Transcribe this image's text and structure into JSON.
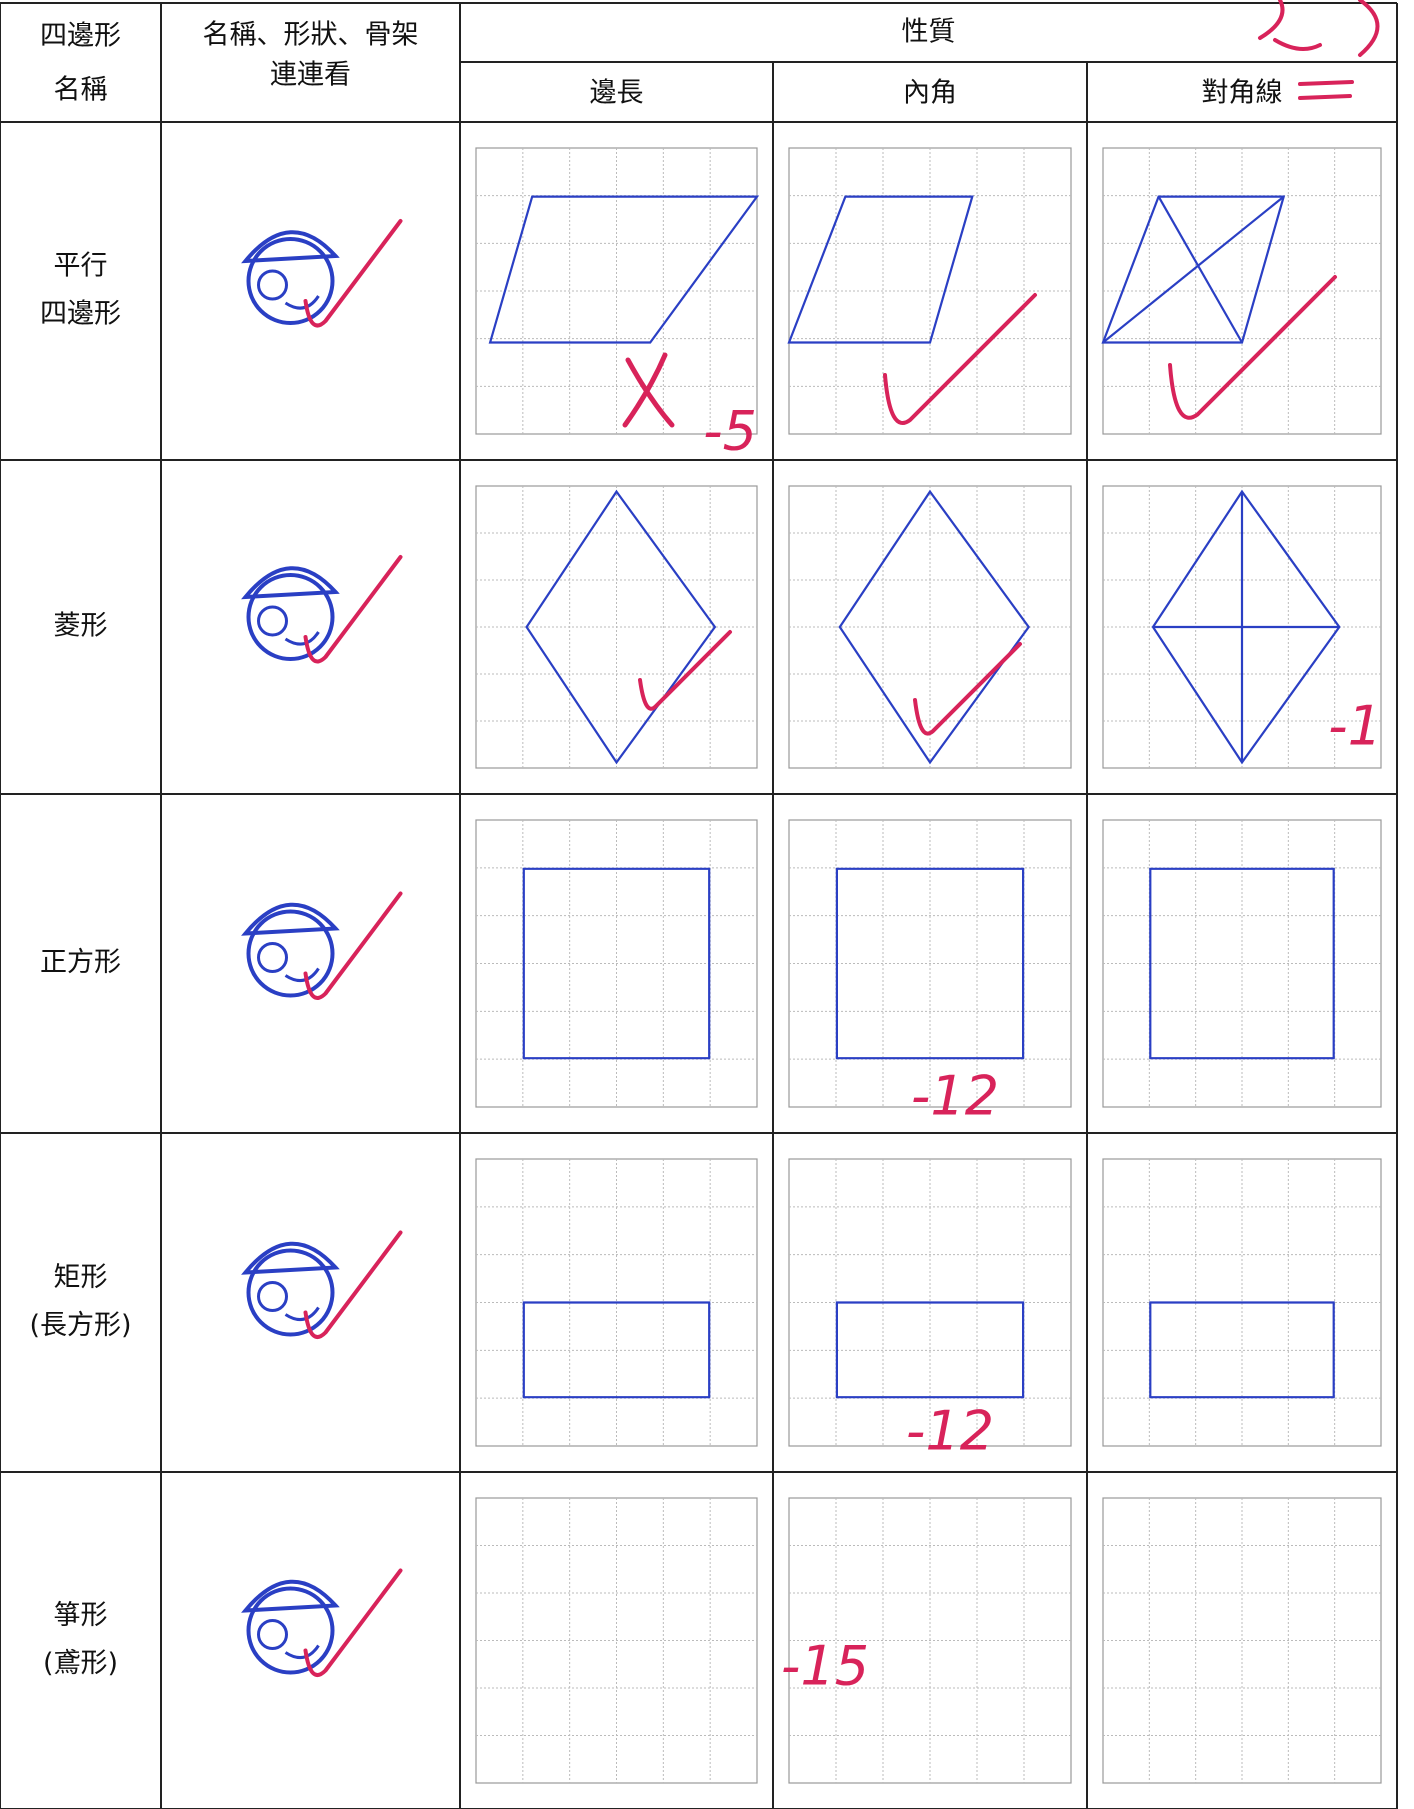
{
  "table": {
    "headers": {
      "name": [
        "四邊形",
        "名稱"
      ],
      "match": [
        "名稱、形狀、骨架",
        "連連看"
      ],
      "properties": "性質",
      "sides": "邊長",
      "angles": "內角",
      "diagonals": "對角線"
    },
    "rows": [
      {
        "name": [
          "平行",
          "四邊形"
        ],
        "deduction": "-5"
      },
      {
        "name": [
          "菱形"
        ],
        "deduction": "-1"
      },
      {
        "name": [
          "正方形"
        ],
        "deduction": "-12"
      },
      {
        "name": [
          "矩形",
          "(長方形)"
        ],
        "deduction": "-12"
      },
      {
        "name": [
          "箏形",
          "(鳶形)"
        ],
        "deduction": "-15"
      }
    ]
  }
}
